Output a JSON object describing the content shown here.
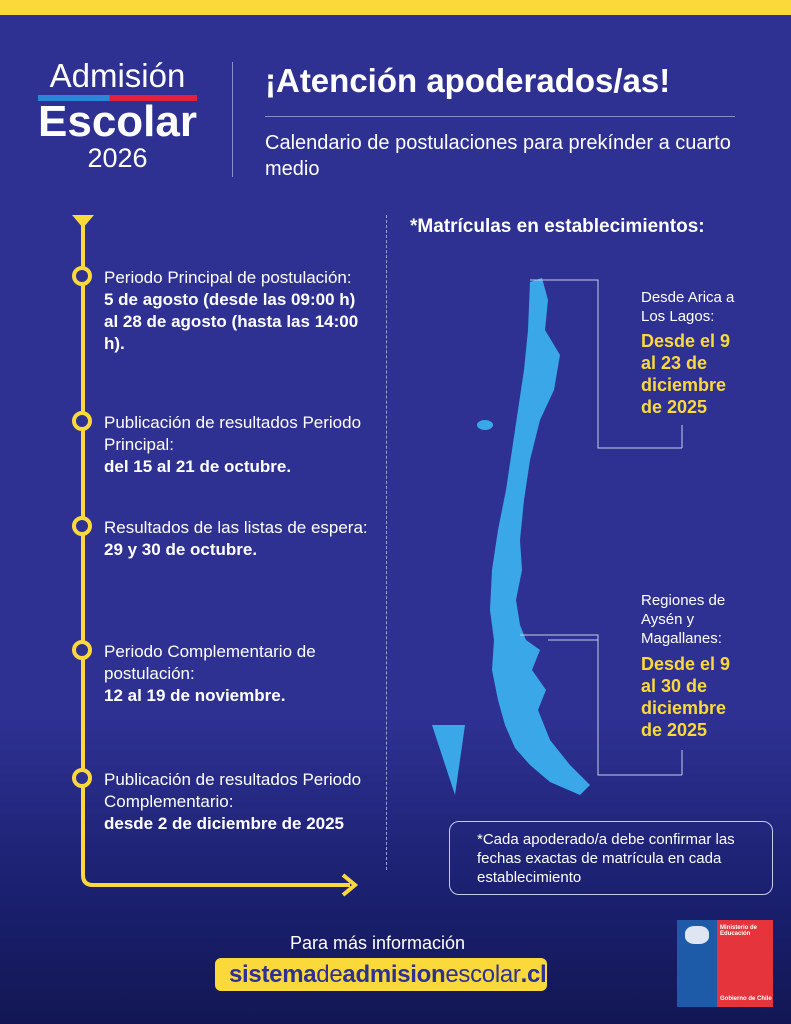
{
  "logo": {
    "line1": "Admisión",
    "line2": "Escolar",
    "year": "2026"
  },
  "header": {
    "title": "¡Atención apoderados/as!",
    "subtitle": "Calendario de postulaciones para prekínder a cuarto medio"
  },
  "timeline": [
    {
      "text": "Periodo Principal de postulación:",
      "bold": "5 de agosto (desde las 09:00 h) al 28 de agosto (hasta las 14:00 h)."
    },
    {
      "text": "Publicación de resultados Periodo Principal:",
      "bold": "del 15 al 21 de octubre."
    },
    {
      "text": "Resultados de las listas de espera:",
      "bold": "29 y 30 de octubre."
    },
    {
      "text": "Periodo Complementario de postulación:",
      "bold": "12 al 19 de noviembre."
    },
    {
      "text": "Publicación de resultados Periodo Complementario:",
      "bold": "desde 2 de diciembre de 2025"
    }
  ],
  "enrollment": {
    "title": "*Matrículas en establecimientos:",
    "north": {
      "regions": "Desde Arica a Los Lagos:",
      "dates": "Desde el 9 al 23 de diciembre de 2025"
    },
    "south": {
      "regions": "Regiones de Aysén y Magallanes:",
      "dates": "Desde el 9 al 30 de diciembre de 2025"
    },
    "note": "*Cada apoderado/a debe confirmar las fechas exactas de matrícula en cada establecimiento"
  },
  "footer": {
    "more_info": "Para más información",
    "url_parts": [
      "sistema",
      "de",
      "admision",
      "escolar",
      ".cl"
    ],
    "ministry": {
      "name": "Ministerio de Educación",
      "gov": "Gobierno de Chile"
    }
  },
  "colors": {
    "background": "#2e3192",
    "accent": "#fcd93a",
    "map": "#3aa8e8"
  }
}
